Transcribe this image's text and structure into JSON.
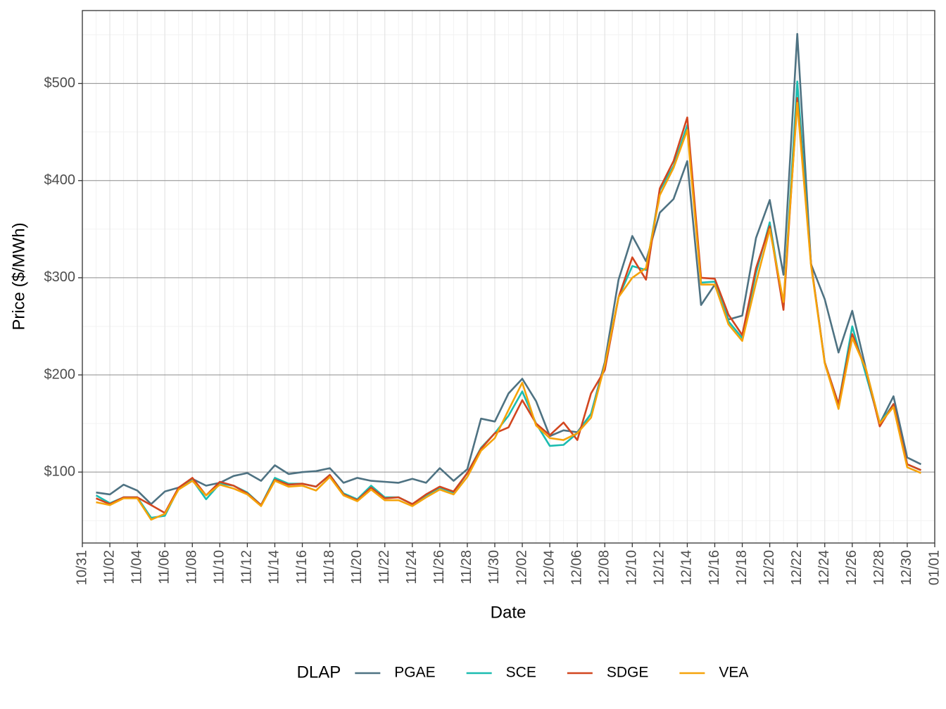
{
  "chart_data": {
    "type": "line",
    "xlabel": "Date",
    "ylabel": "Price ($/MWh)",
    "legend_title": "DLAP",
    "legend_position": "bottom",
    "grid": true,
    "x": [
      "11/01",
      "11/02",
      "11/03",
      "11/04",
      "11/05",
      "11/06",
      "11/07",
      "11/08",
      "11/09",
      "11/10",
      "11/11",
      "11/12",
      "11/13",
      "11/14",
      "11/15",
      "11/16",
      "11/17",
      "11/18",
      "11/19",
      "11/20",
      "11/21",
      "11/22",
      "11/23",
      "11/24",
      "11/25",
      "11/26",
      "11/27",
      "11/28",
      "11/29",
      "11/30",
      "12/01",
      "12/02",
      "12/03",
      "12/04",
      "12/05",
      "12/06",
      "12/07",
      "12/08",
      "12/09",
      "12/10",
      "12/11",
      "12/12",
      "12/13",
      "12/14",
      "12/15",
      "12/16",
      "12/17",
      "12/18",
      "12/19",
      "12/20",
      "12/21",
      "12/22",
      "12/23",
      "12/24",
      "12/25",
      "12/26",
      "12/27",
      "12/28",
      "12/29",
      "12/30",
      "12/31"
    ],
    "xlim": [
      "10/31",
      "01/01"
    ],
    "xticks": [
      "10/31",
      "11/02",
      "11/04",
      "11/06",
      "11/08",
      "11/10",
      "11/12",
      "11/14",
      "11/16",
      "11/18",
      "11/20",
      "11/22",
      "11/24",
      "11/26",
      "11/28",
      "11/30",
      "12/02",
      "12/04",
      "12/06",
      "12/08",
      "12/10",
      "12/12",
      "12/14",
      "12/16",
      "12/18",
      "12/20",
      "12/22",
      "12/24",
      "12/26",
      "12/28",
      "12/30",
      "01/01"
    ],
    "ylim": [
      27,
      575
    ],
    "yticks": [
      {
        "value": 100,
        "label": "$100"
      },
      {
        "value": 200,
        "label": "$200"
      },
      {
        "value": 300,
        "label": "$300"
      },
      {
        "value": 400,
        "label": "$400"
      },
      {
        "value": 500,
        "label": "$500"
      }
    ],
    "series": [
      {
        "name": "PGAE",
        "color": "#4e7282",
        "values": [
          79,
          77,
          87,
          81,
          67,
          80,
          84,
          93,
          86,
          89,
          96,
          99,
          91,
          107,
          98,
          100,
          101,
          104,
          89,
          94,
          91,
          90,
          89,
          93,
          89,
          104,
          91,
          103,
          155,
          152,
          181,
          196,
          173,
          137,
          143,
          141,
          160,
          213,
          298,
          343,
          317,
          367,
          381,
          420,
          272,
          293,
          257,
          261,
          341,
          380,
          303,
          551,
          314,
          278,
          223,
          266,
          206,
          150,
          178,
          115,
          108
        ]
      },
      {
        "name": "SCE",
        "color": "#1bbcb0",
        "values": [
          76,
          68,
          74,
          74,
          53,
          55,
          83,
          92,
          72,
          88,
          86,
          79,
          66,
          94,
          88,
          88,
          85,
          97,
          78,
          72,
          86,
          74,
          74,
          67,
          76,
          84,
          79,
          99,
          125,
          140,
          158,
          183,
          150,
          127,
          128,
          140,
          160,
          210,
          280,
          312,
          308,
          390,
          415,
          457,
          295,
          296,
          255,
          238,
          305,
          357,
          270,
          502,
          315,
          213,
          170,
          250,
          200,
          150,
          170,
          108,
          102
        ]
      },
      {
        "name": "SDGE",
        "color": "#d2461f",
        "values": [
          73,
          67,
          74,
          74,
          66,
          58,
          84,
          94,
          76,
          90,
          86,
          78,
          66,
          92,
          87,
          88,
          85,
          97,
          77,
          71,
          84,
          73,
          74,
          67,
          77,
          85,
          80,
          99,
          124,
          140,
          146,
          174,
          150,
          138,
          151,
          133,
          181,
          205,
          280,
          321,
          298,
          392,
          420,
          465,
          300,
          299,
          262,
          241,
          310,
          353,
          267,
          485,
          315,
          213,
          170,
          242,
          205,
          147,
          170,
          108,
          102
        ]
      },
      {
        "name": "VEA",
        "color": "#f5a30a",
        "values": [
          69,
          66,
          73,
          73,
          51,
          57,
          82,
          91,
          76,
          87,
          83,
          77,
          65,
          91,
          85,
          86,
          81,
          95,
          76,
          70,
          82,
          71,
          71,
          65,
          74,
          82,
          77,
          95,
          122,
          135,
          164,
          192,
          148,
          135,
          133,
          140,
          156,
          210,
          280,
          300,
          310,
          385,
          413,
          452,
          293,
          293,
          252,
          235,
          295,
          350,
          275,
          480,
          313,
          212,
          165,
          238,
          206,
          150,
          167,
          105,
          99
        ]
      }
    ]
  }
}
